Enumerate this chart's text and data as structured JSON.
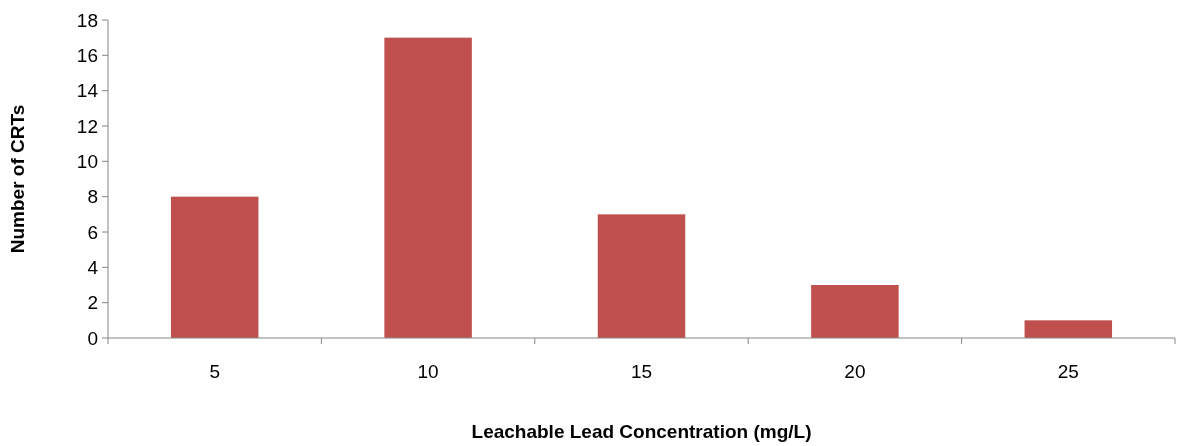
{
  "chart_data": {
    "type": "bar",
    "xlabel": "Leachable Lead Concentration (mg/L)",
    "ylabel": "Number of CRTs",
    "categories": [
      "5",
      "10",
      "15",
      "20",
      "25"
    ],
    "values": [
      8,
      17,
      7,
      3,
      1
    ],
    "color": "#c0504d",
    "ylim": [
      0,
      18
    ],
    "yticks": [
      0,
      2,
      4,
      6,
      8,
      10,
      12,
      14,
      16,
      18
    ],
    "grid": false
  }
}
